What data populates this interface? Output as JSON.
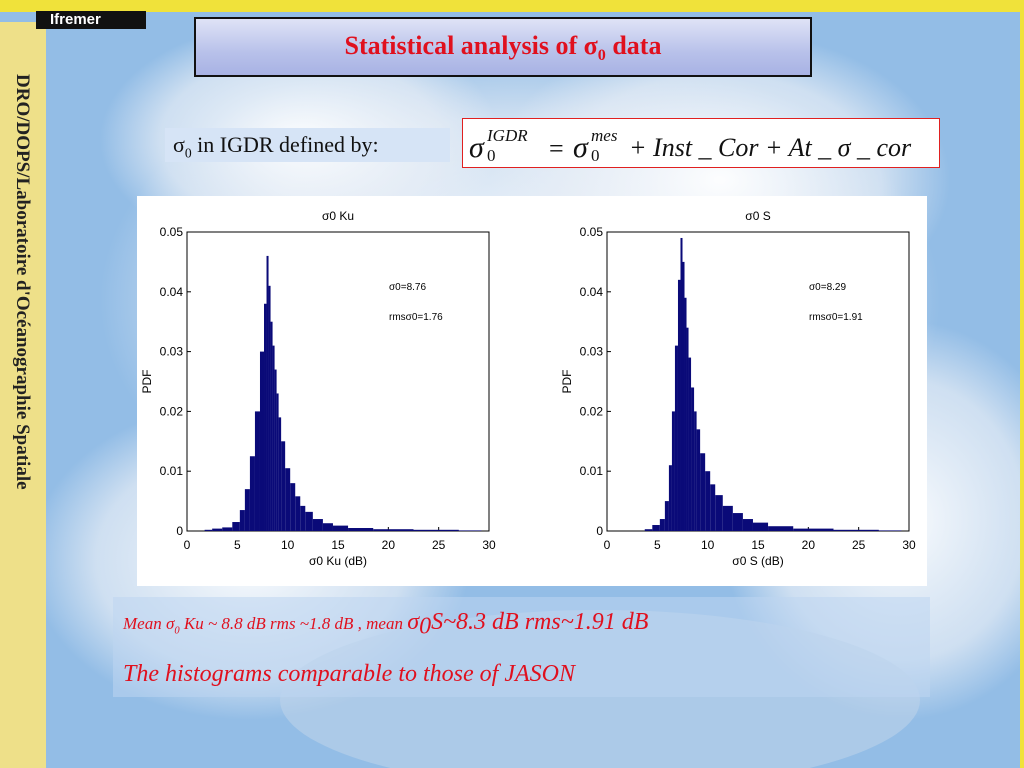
{
  "logo": {
    "text": "Ifremer"
  },
  "sidebar": {
    "text": "DRO/DOPS/Laboratoire d'Océanographie Spatiale"
  },
  "title": {
    "prefix": "Statistical  analysis of ",
    "sigma": "σ",
    "sub": "0",
    "suffix": " data"
  },
  "definition": {
    "sigma": "σ",
    "sub": "0",
    "text": " in IGDR defined by:"
  },
  "formula": {
    "lhs_sigma": "σ",
    "lhs_sup": "IGDR",
    "lhs_sub": "0",
    "equals": "=",
    "rhs_sigma": "σ",
    "rhs_sup": "mes",
    "rhs_sub": "0",
    "terms": "+ Inst _ Cor + At _ σ _ cor"
  },
  "notes": {
    "line1_a": "Mean ",
    "line1_sigma": "σ",
    "line1_sub": "0",
    "line1_b": " Ku ~ 8.8 dB rms ~1.8 dB , mean ",
    "line1_sigma2": "σ",
    "line1_sub2": "0",
    "line1_c": "S~8.3 dB rms~1.91 dB",
    "line2": "The histograms comparable to those of JASON"
  },
  "colors": {
    "bar": "#0a0a78",
    "accent_red": "#e0101e"
  },
  "chart_data": [
    {
      "type": "bar",
      "title": "σ0 Ku",
      "xlabel": "σ0 Ku (dB)",
      "ylabel": "PDF",
      "xlim": [
        0,
        30
      ],
      "ylim": [
        0,
        0.05
      ],
      "xticks": [
        "0",
        "5",
        "10",
        "15",
        "20",
        "25",
        "30"
      ],
      "yticks": [
        "0",
        "0.01",
        "0.02",
        "0.03",
        "0.04",
        "0.05"
      ],
      "annotations": [
        "σ0=8.76",
        "rmsσ0=1.76"
      ],
      "x": [
        2,
        3,
        4,
        5,
        5.5,
        6,
        6.5,
        7,
        7.5,
        7.8,
        8,
        8.2,
        8.4,
        8.6,
        8.8,
        9,
        9.2,
        9.5,
        10,
        10.5,
        11,
        11.5,
        12,
        13,
        14,
        15,
        17,
        20,
        25,
        29
      ],
      "values": [
        0.0002,
        0.0004,
        0.0006,
        0.0015,
        0.0035,
        0.007,
        0.0125,
        0.02,
        0.03,
        0.038,
        0.046,
        0.041,
        0.035,
        0.031,
        0.027,
        0.023,
        0.019,
        0.015,
        0.0105,
        0.008,
        0.0058,
        0.0042,
        0.0032,
        0.002,
        0.0013,
        0.0009,
        0.0005,
        0.0003,
        0.0002,
        0.0001
      ]
    },
    {
      "type": "bar",
      "title": "σ0 S",
      "xlabel": "σ0 S (dB)",
      "ylabel": "PDF",
      "xlim": [
        0,
        30
      ],
      "ylim": [
        0,
        0.05
      ],
      "xticks": [
        "0",
        "5",
        "10",
        "15",
        "20",
        "25",
        "30"
      ],
      "yticks": [
        "0",
        "0.01",
        "0.02",
        "0.03",
        "0.04",
        "0.05"
      ],
      "annotations": [
        "σ0=8.29",
        "rmsσ0=1.91"
      ],
      "x": [
        4,
        5,
        5.5,
        6,
        6.3,
        6.6,
        6.9,
        7.2,
        7.4,
        7.6,
        7.8,
        8,
        8.2,
        8.5,
        8.8,
        9,
        9.5,
        10,
        10.5,
        11,
        12,
        13,
        14,
        15,
        17,
        20,
        25,
        29
      ],
      "values": [
        0.0003,
        0.001,
        0.002,
        0.005,
        0.011,
        0.02,
        0.031,
        0.042,
        0.049,
        0.045,
        0.039,
        0.034,
        0.029,
        0.024,
        0.02,
        0.017,
        0.013,
        0.01,
        0.0078,
        0.006,
        0.0042,
        0.003,
        0.002,
        0.0014,
        0.0008,
        0.0004,
        0.0002,
        0.0001
      ]
    }
  ]
}
